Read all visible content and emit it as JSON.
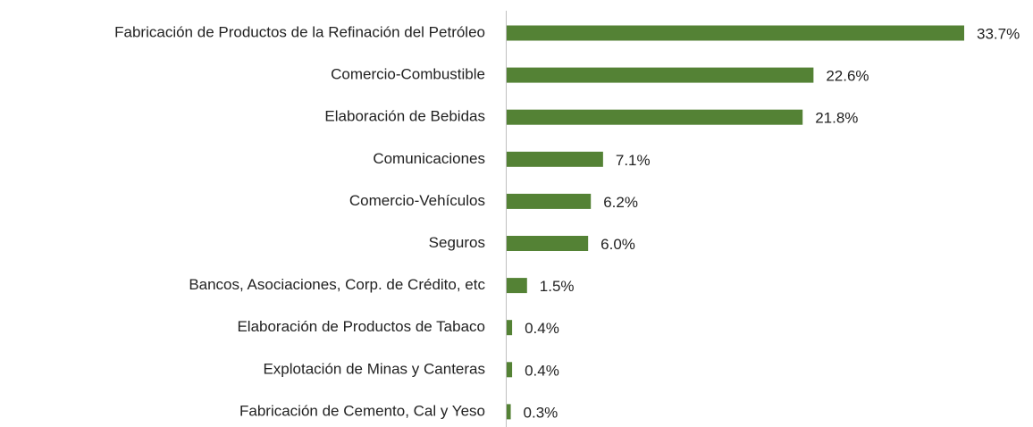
{
  "chart_data": {
    "type": "hbar",
    "categories": [
      "Fabricación de Productos de la Refinación del Petróleo",
      "Comercio-Combustible",
      "Elaboración de Bebidas",
      "Comunicaciones",
      "Comercio-Vehículos",
      "Seguros",
      "Bancos, Asociaciones, Corp. de Crédito, etc",
      "Elaboración de Productos de Tabaco",
      "Explotación de Minas y Canteras",
      "Fabricación de Cemento, Cal y Yeso"
    ],
    "values": [
      33.7,
      22.6,
      21.8,
      7.1,
      6.2,
      6.0,
      1.5,
      0.4,
      0.4,
      0.3
    ],
    "value_labels": [
      "33.7%",
      "22.6%",
      "21.8%",
      "7.1%",
      "6.2%",
      "6.0%",
      "1.5%",
      "0.4%",
      "0.4%",
      "0.3%"
    ],
    "color": "#548235"
  }
}
